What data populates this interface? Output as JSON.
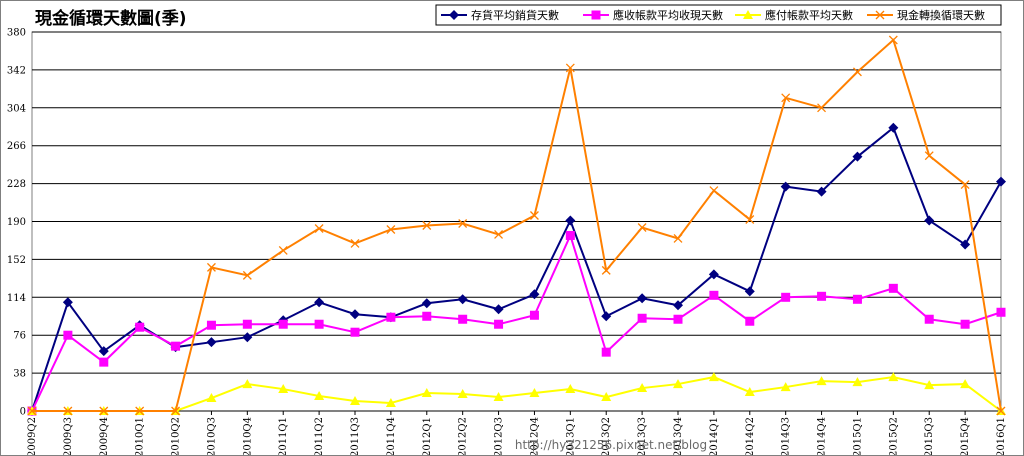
{
  "chart_data": {
    "type": "line",
    "title": "現金循環天數圖(季)",
    "xlabel": "",
    "ylabel": "",
    "ylim": [
      0,
      380
    ],
    "yticks": [
      0,
      38,
      76,
      114,
      152,
      190,
      228,
      266,
      304,
      342,
      380
    ],
    "grid": true,
    "legend_position": "top-right",
    "categories": [
      "2009Q2",
      "2009Q3",
      "2009Q4",
      "2010Q1",
      "2010Q2",
      "2010Q3",
      "2010Q4",
      "2011Q1",
      "2011Q2",
      "2011Q3",
      "2011Q4",
      "2012Q1",
      "2012Q2",
      "2012Q3",
      "2012Q4",
      "2013Q1",
      "2013Q2",
      "2013Q3",
      "2013Q4",
      "2014Q1",
      "2014Q2",
      "2014Q3",
      "2014Q4",
      "2015Q1",
      "2015Q2",
      "2015Q3",
      "2015Q4",
      "2016Q1"
    ],
    "series": [
      {
        "name": "存貨平均銷貨天數",
        "color": "#000080",
        "marker": "diamond",
        "values": [
          0,
          109,
          60,
          86,
          64,
          69,
          74,
          91,
          109,
          97,
          94,
          108,
          112,
          102,
          117,
          191,
          95,
          113,
          106,
          137,
          120,
          225,
          220,
          255,
          284,
          191,
          167,
          230
        ]
      },
      {
        "name": "應收帳款平均收現天數",
        "color": "#ff00ff",
        "marker": "square",
        "values": [
          0,
          76,
          49,
          84,
          65,
          86,
          87,
          87,
          87,
          79,
          94,
          95,
          92,
          87,
          96,
          176,
          59,
          93,
          92,
          116,
          90,
          114,
          115,
          112,
          123,
          92,
          87,
          99
        ]
      },
      {
        "name": "應付帳款平均天數",
        "color": "#ffff00",
        "marker": "triangle",
        "values": [
          0,
          0,
          0,
          0,
          0,
          13,
          27,
          22,
          15,
          10,
          8,
          18,
          17,
          14,
          18,
          22,
          14,
          23,
          27,
          34,
          19,
          24,
          30,
          29,
          34,
          26,
          27,
          0
        ]
      },
      {
        "name": "現金轉換循環天數",
        "color": "#ff8000",
        "marker": "x",
        "values": [
          0,
          0,
          0,
          0,
          0,
          144,
          136,
          161,
          183,
          168,
          182,
          186,
          188,
          177,
          196,
          344,
          141,
          184,
          173,
          221,
          192,
          314,
          304,
          340,
          372,
          256,
          227,
          0
        ]
      }
    ]
  },
  "watermark": "http://hy321256.pixnet.net/blog"
}
